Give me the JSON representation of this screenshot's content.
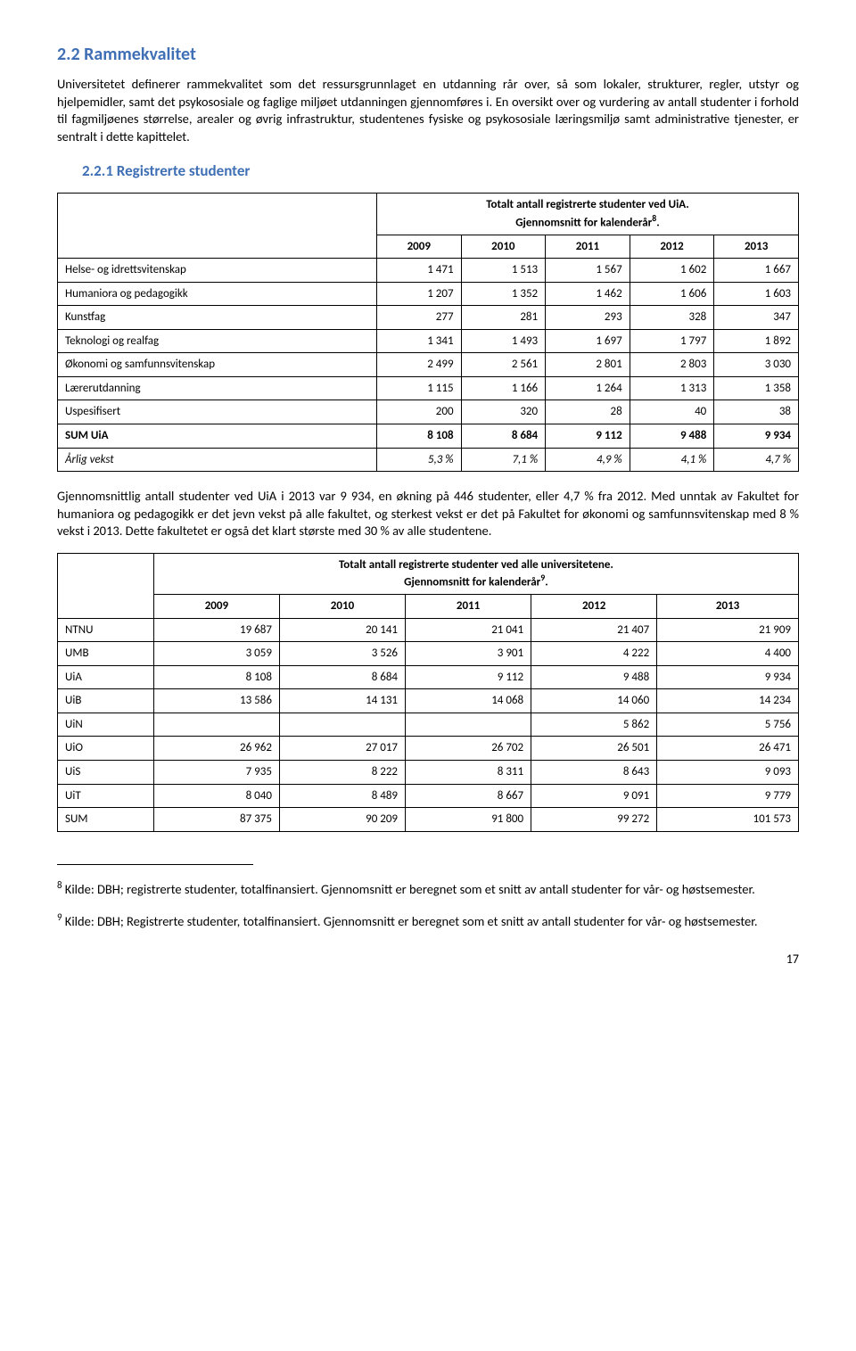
{
  "section": {
    "number": "2.2",
    "title": "Rammekvalitet",
    "heading": "2.2  Rammekvalitet"
  },
  "intro_paragraph": "Universitetet definerer rammekvalitet som det ressursgrunnlaget en utdanning rår over, så som lokaler, strukturer, regler, utstyr og hjelpemidler, samt det psykososiale og faglige miljøet utdanningen gjennomføres i. En oversikt over og vurdering av antall studenter i forhold til fagmiljøenes størrelse, arealer og øvrig infrastruktur, studentenes fysiske og psykososiale læringsmiljø samt administrative tjenester, er sentralt i dette kapittelet.",
  "subsection": {
    "number": "2.2.1",
    "title": "Registrerte studenter",
    "heading": "2.2.1   Registrerte studenter"
  },
  "table1": {
    "caption_line1": "Totalt antall registrerte studenter ved UiA.",
    "caption_line2_prefix": "Gjennomsnitt for kalenderår",
    "caption_sup": "8",
    "caption_suffix": ".",
    "years": [
      "2009",
      "2010",
      "2011",
      "2012",
      "2013"
    ],
    "rows": [
      {
        "label": "Helse- og idrettsvitenskap",
        "vals": [
          "1 471",
          "1 513",
          "1 567",
          "1 602",
          "1 667"
        ]
      },
      {
        "label": "Humaniora og pedagogikk",
        "vals": [
          "1 207",
          "1 352",
          "1 462",
          "1 606",
          "1 603"
        ]
      },
      {
        "label": "Kunstfag",
        "vals": [
          "277",
          "281",
          "293",
          "328",
          "347"
        ]
      },
      {
        "label": "Teknologi og realfag",
        "vals": [
          "1 341",
          "1 493",
          "1 697",
          "1 797",
          "1 892"
        ]
      },
      {
        "label": "Økonomi og samfunnsvitenskap",
        "vals": [
          "2 499",
          "2 561",
          "2 801",
          "2 803",
          "3 030"
        ]
      },
      {
        "label": "Lærerutdanning",
        "vals": [
          "1 115",
          "1 166",
          "1 264",
          "1 313",
          "1 358"
        ]
      },
      {
        "label": "Uspesifisert",
        "vals": [
          "200",
          "320",
          "28",
          "40",
          "38"
        ]
      }
    ],
    "sum": {
      "label": "SUM UiA",
      "vals": [
        "8 108",
        "8 684",
        "9 112",
        "9 488",
        "9 934"
      ]
    },
    "growth": {
      "label": "Årlig vekst",
      "vals": [
        "5,3 %",
        "7,1 %",
        "4,9 %",
        "4,1 %",
        "4,7 %"
      ]
    }
  },
  "mid_paragraph": "Gjennomsnittlig antall studenter ved UiA i 2013 var 9 934, en økning på 446 studenter, eller 4,7 % fra 2012. Med unntak av Fakultet for humaniora og pedagogikk er det jevn vekst på alle fakultet, og sterkest vekst er det på Fakultet for økonomi og samfunnsvitenskap med 8 % vekst i 2013. Dette fakultetet er også det klart største med 30 % av alle studentene.",
  "table2": {
    "caption_line1": "Totalt antall registrerte studenter ved alle universitetene.",
    "caption_line2_prefix": "Gjennomsnitt for kalenderår",
    "caption_sup": "9",
    "caption_suffix": ".",
    "years": [
      "2009",
      "2010",
      "2011",
      "2012",
      "2013"
    ],
    "rows": [
      {
        "label": "NTNU",
        "vals": [
          "19 687",
          "20 141",
          "21 041",
          "21 407",
          "21 909"
        ]
      },
      {
        "label": "UMB",
        "vals": [
          "3 059",
          "3 526",
          "3 901",
          "4 222",
          "4 400"
        ]
      },
      {
        "label": "UiA",
        "vals": [
          "8 108",
          "8 684",
          "9 112",
          "9 488",
          "9 934"
        ]
      },
      {
        "label": "UiB",
        "vals": [
          "13 586",
          "14 131",
          "14 068",
          "14 060",
          "14 234"
        ]
      },
      {
        "label": "UiN",
        "vals": [
          "",
          "",
          "",
          "5 862",
          "5 756"
        ]
      },
      {
        "label": "UiO",
        "vals": [
          "26 962",
          "27 017",
          "26 702",
          "26 501",
          "26 471"
        ]
      },
      {
        "label": "UiS",
        "vals": [
          "7 935",
          "8 222",
          "8 311",
          "8 643",
          "9 093"
        ]
      },
      {
        "label": "UiT",
        "vals": [
          "8 040",
          "8 489",
          "8 667",
          "9 091",
          "9 779"
        ]
      }
    ],
    "sum": {
      "label": "SUM",
      "vals": [
        "87 375",
        "90 209",
        "91 800",
        "99 272",
        "101 573"
      ]
    }
  },
  "footnotes": {
    "f8_sup": "8",
    "f8_text": " Kilde: DBH; registrerte studenter, totalfinansiert. Gjennomsnitt er beregnet som et snitt av antall studenter for vår- og høstsemester.",
    "f9_sup": "9",
    "f9_text": " Kilde: DBH; Registrerte studenter, totalfinansiert. Gjennomsnitt er beregnet som et snitt av antall studenter for vår- og høstsemester."
  },
  "page_number": "17"
}
